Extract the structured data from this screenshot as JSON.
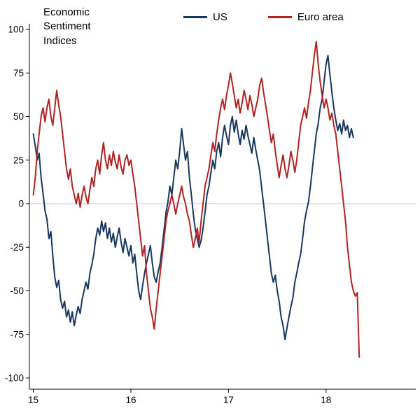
{
  "accent_colors": {
    "us_line": "#17375e",
    "euro_line": "#b22222",
    "zero_gridline": "#c9c9c9",
    "axis": "#000000"
  },
  "chart_data": {
    "type": "line",
    "title": "Economic\nSentiment\nIndices",
    "xlabel": "",
    "ylabel": "",
    "x_start": 15.0,
    "x_step": 0.02,
    "xlim": [
      14.96,
      18.92
    ],
    "ylim": [
      -100,
      100
    ],
    "x_ticks": [
      15,
      16,
      17,
      18
    ],
    "y_ticks": [
      -100,
      -75,
      -50,
      -25,
      0,
      25,
      50,
      75,
      100
    ],
    "grid": "zero-line-only",
    "legend_position": "top-center",
    "series": [
      {
        "name": "US",
        "color": "#17375e",
        "values": [
          40,
          33,
          25,
          29,
          15,
          6,
          -4,
          -9,
          -20,
          -16,
          -30,
          -42,
          -48,
          -44,
          -55,
          -60,
          -56,
          -65,
          -61,
          -68,
          -62,
          -70,
          -64,
          -59,
          -63,
          -55,
          -50,
          -45,
          -49,
          -40,
          -35,
          -29,
          -20,
          -14,
          -18,
          -10,
          -16,
          -11,
          -20,
          -14,
          -22,
          -17,
          -25,
          -19,
          -14,
          -22,
          -28,
          -20,
          -25,
          -30,
          -24,
          -34,
          -29,
          -40,
          -50,
          -55,
          -47,
          -40,
          -34,
          -29,
          -24,
          -34,
          -42,
          -45,
          -39,
          -34,
          -25,
          -15,
          -5,
          1,
          10,
          5,
          15,
          25,
          20,
          30,
          43,
          34,
          25,
          30,
          15,
          5,
          -6,
          -15,
          -20,
          -25,
          -21,
          -14,
          -5,
          5,
          10,
          18,
          25,
          20,
          30,
          35,
          27,
          38,
          45,
          39,
          34,
          45,
          50,
          41,
          48,
          40,
          34,
          42,
          37,
          45,
          39,
          34,
          29,
          38,
          31,
          25,
          19,
          9,
          0,
          -10,
          -20,
          -30,
          -40,
          -45,
          -41,
          -50,
          -56,
          -65,
          -70,
          -78,
          -71,
          -65,
          -59,
          -54,
          -45,
          -40,
          -34,
          -29,
          -20,
          -10,
          -4,
          1,
          10,
          20,
          30,
          40,
          46,
          55,
          60,
          70,
          80,
          85,
          74,
          64,
          55,
          48,
          42,
          46,
          40,
          48,
          42,
          45,
          38,
          43,
          38
        ]
      },
      {
        "name": "Euro area",
        "color": "#b22222",
        "values": [
          5,
          15,
          30,
          40,
          50,
          55,
          47,
          55,
          60,
          50,
          45,
          55,
          65,
          57,
          50,
          40,
          30,
          20,
          14,
          20,
          10,
          5,
          0,
          6,
          -2,
          5,
          10,
          4,
          0,
          8,
          15,
          10,
          20,
          25,
          17,
          28,
          35,
          25,
          20,
          28,
          22,
          30,
          24,
          20,
          28,
          21,
          17,
          25,
          28,
          22,
          25,
          17,
          10,
          0,
          -10,
          -20,
          -30,
          -24,
          -40,
          -50,
          -60,
          -65,
          -72,
          -60,
          -50,
          -40,
          -30,
          -20,
          -10,
          -4,
          0,
          5,
          0,
          -6,
          0,
          5,
          10,
          4,
          0,
          -6,
          -10,
          -18,
          -25,
          -20,
          -14,
          -22,
          -10,
          0,
          10,
          15,
          20,
          28,
          35,
          30,
          40,
          48,
          55,
          60,
          54,
          62,
          68,
          75,
          69,
          62,
          55,
          60,
          52,
          58,
          65,
          60,
          54,
          62,
          57,
          50,
          55,
          60,
          68,
          72,
          64,
          57,
          50,
          42,
          35,
          40,
          30,
          22,
          15,
          22,
          28,
          20,
          15,
          22,
          30,
          25,
          18,
          25,
          35,
          45,
          50,
          55,
          49,
          58,
          65,
          75,
          85,
          93,
          80,
          70,
          62,
          55,
          60,
          55,
          48,
          52,
          45,
          40,
          30,
          20,
          10,
          0,
          -10,
          -25,
          -35,
          -45,
          -50,
          -53,
          -51,
          -88
        ]
      }
    ]
  }
}
